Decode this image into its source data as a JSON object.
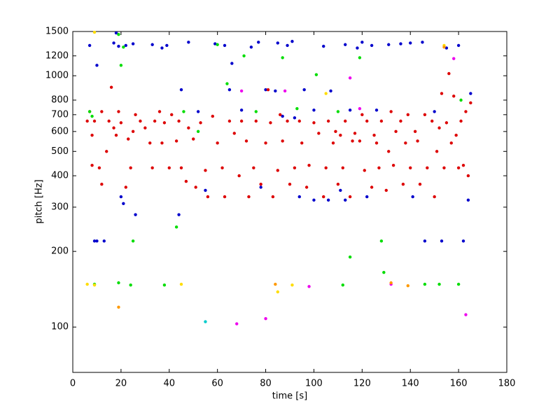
{
  "chart_data": {
    "type": "scatter",
    "xlabel": "time [s]",
    "ylabel": "pitch [Hz]",
    "xlim": [
      0,
      180
    ],
    "xticks": [
      0,
      20,
      40,
      60,
      80,
      100,
      120,
      140,
      160,
      180
    ],
    "ylim": [
      66,
      1500
    ],
    "yticks": [
      100,
      200,
      300,
      400,
      500,
      600,
      700,
      800,
      1000,
      1200,
      1500
    ],
    "ylog": true,
    "series": [
      {
        "color": "#0000cc",
        "x": [
          7,
          9,
          10,
          10,
          13,
          17,
          18,
          19,
          20,
          21,
          22,
          25,
          26,
          33,
          37,
          39,
          44,
          48,
          52,
          55,
          59,
          63,
          65,
          66,
          70,
          74,
          77,
          80,
          85,
          87,
          89,
          91,
          96,
          100,
          104,
          107,
          111,
          113,
          115,
          118,
          120,
          122,
          124,
          126,
          131,
          136,
          140,
          141,
          145,
          146,
          150,
          153,
          155,
          160,
          162,
          164,
          165,
          106,
          94,
          84,
          92,
          100,
          113,
          78,
          45
        ],
        "values": [
          1320,
          220,
          220,
          1100,
          220,
          1350,
          1480,
          1310,
          330,
          310,
          1320,
          1340,
          280,
          1330,
          1290,
          1320,
          280,
          1360,
          720,
          350,
          1340,
          1320,
          880,
          1120,
          730,
          1300,
          1360,
          880,
          1350,
          690,
          1320,
          1370,
          880,
          730,
          1310,
          870,
          350,
          1330,
          730,
          1290,
          1360,
          330,
          1320,
          730,
          1330,
          1340,
          1350,
          330,
          1360,
          220,
          720,
          220,
          1290,
          1320,
          220,
          320,
          850,
          320,
          330,
          870,
          680,
          320,
          320,
          360,
          880
        ]
      },
      {
        "color": "#dd0000",
        "x": [
          6,
          7,
          8,
          8,
          9,
          11,
          12,
          12,
          14,
          15,
          16,
          17,
          18,
          19,
          20,
          22,
          23,
          24,
          25,
          26,
          28,
          30,
          32,
          33,
          34,
          36,
          37,
          38,
          40,
          41,
          43,
          44,
          45,
          47,
          48,
          50,
          51,
          53,
          55,
          56,
          58,
          60,
          62,
          63,
          65,
          67,
          69,
          70,
          72,
          73,
          75,
          76,
          78,
          80,
          81,
          82,
          83,
          85,
          86,
          87,
          89,
          90,
          92,
          94,
          95,
          97,
          98,
          100,
          102,
          104,
          105,
          106,
          108,
          109,
          110,
          111,
          112,
          113,
          115,
          116,
          117,
          119,
          120,
          121,
          122,
          124,
          125,
          126,
          127,
          128,
          130,
          131,
          132,
          133,
          134,
          136,
          137,
          138,
          139,
          140,
          142,
          143,
          144,
          146,
          147,
          149,
          150,
          151,
          152,
          153,
          154,
          155,
          156,
          157,
          158,
          159,
          160,
          161,
          162,
          163,
          164,
          165
        ],
        "values": [
          660,
          720,
          440,
          580,
          660,
          430,
          720,
          370,
          500,
          660,
          900,
          620,
          580,
          720,
          650,
          360,
          560,
          430,
          600,
          700,
          660,
          620,
          540,
          430,
          660,
          720,
          540,
          650,
          430,
          700,
          550,
          660,
          430,
          380,
          620,
          560,
          360,
          650,
          420,
          330,
          690,
          540,
          430,
          330,
          660,
          590,
          400,
          660,
          550,
          330,
          430,
          660,
          370,
          540,
          880,
          650,
          330,
          420,
          700,
          550,
          660,
          370,
          430,
          660,
          540,
          360,
          440,
          650,
          590,
          330,
          430,
          660,
          540,
          600,
          370,
          580,
          430,
          660,
          330,
          550,
          590,
          550,
          700,
          420,
          660,
          360,
          580,
          540,
          430,
          660,
          350,
          500,
          720,
          440,
          600,
          660,
          370,
          540,
          700,
          430,
          600,
          550,
          370,
          700,
          430,
          660,
          330,
          500,
          620,
          850,
          430,
          650,
          1020,
          540,
          830,
          580,
          430,
          660,
          440,
          720,
          400,
          780
        ]
      },
      {
        "color": "#00dd00",
        "x": [
          7,
          8,
          19,
          20,
          21,
          25,
          9,
          19,
          24,
          38,
          43,
          46,
          52,
          60,
          64,
          71,
          76,
          87,
          93,
          101,
          110,
          112,
          115,
          119,
          128,
          129,
          146,
          152,
          160,
          161
        ],
        "values": [
          720,
          690,
          1460,
          1100,
          1300,
          220,
          148,
          150,
          147,
          147,
          250,
          720,
          600,
          1330,
          930,
          1200,
          720,
          1180,
          740,
          1010,
          720,
          147,
          190,
          1180,
          220,
          165,
          148,
          148,
          148,
          800
        ]
      },
      {
        "color": "#ffdd00",
        "x": [
          6,
          9,
          45,
          85,
          91,
          105,
          9,
          154
        ],
        "values": [
          148,
          1490,
          148,
          138,
          147,
          850,
          147,
          1320
        ]
      },
      {
        "color": "#ee00ee",
        "x": [
          68,
          80,
          88,
          98,
          115,
          132,
          158,
          163,
          119,
          70
        ],
        "values": [
          103,
          108,
          870,
          145,
          980,
          148,
          1170,
          112,
          740,
          870
        ]
      },
      {
        "color": "#ff9900",
        "x": [
          19,
          84,
          132,
          139,
          154
        ],
        "values": [
          120,
          148,
          150,
          146,
          1300
        ]
      },
      {
        "color": "#00cccc",
        "x": [
          55
        ],
        "values": [
          105
        ]
      }
    ]
  }
}
